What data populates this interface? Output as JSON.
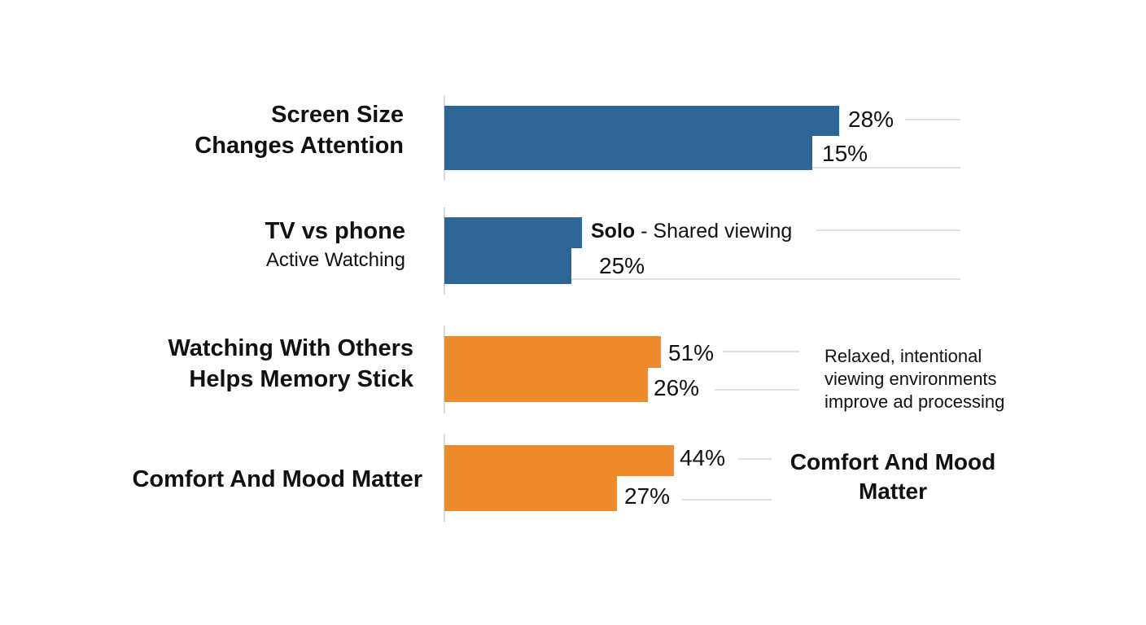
{
  "chart_data": {
    "type": "bar",
    "orientation": "horizontal",
    "colors": {
      "blue": "#2e6596",
      "orange": "#ee8a2a",
      "gridline": "#d6d6d6",
      "axis": "#cfcfcf"
    },
    "groups": [
      {
        "title": [
          "Screen Size",
          "Changes Attention"
        ],
        "subtitle": "",
        "color": "#2e6596",
        "bars": [
          {
            "value": 28,
            "label": "28%"
          },
          {
            "value": 15,
            "label": "15%"
          }
        ]
      },
      {
        "title": [
          "TV vs phone"
        ],
        "subtitle": "Active Watching",
        "color": "#2e6596",
        "bars": [
          {
            "value": null,
            "label_bold": "Solo",
            "label": " - Shared viewing"
          },
          {
            "value": 25,
            "label": "25%"
          }
        ]
      },
      {
        "title": [
          "Watching With Others",
          "Helps Memory Stick"
        ],
        "subtitle": "",
        "color": "#ee8a2a",
        "bars": [
          {
            "value": 51,
            "label": "51%"
          },
          {
            "value": 26,
            "label": "26%"
          }
        ],
        "annotation": [
          "Relaxed, intentional",
          "viewing environments",
          "improve ad processing"
        ]
      },
      {
        "title": [
          "Comfort And Mood Matter"
        ],
        "subtitle": "",
        "color": "#ee8a2a",
        "bars": [
          {
            "value": 44,
            "label": "44%"
          },
          {
            "value": 27,
            "label": "27%"
          }
        ],
        "annotation_bold": [
          "Comfort And Mood",
          "Matter"
        ]
      }
    ],
    "grid": false,
    "legend": "none"
  }
}
